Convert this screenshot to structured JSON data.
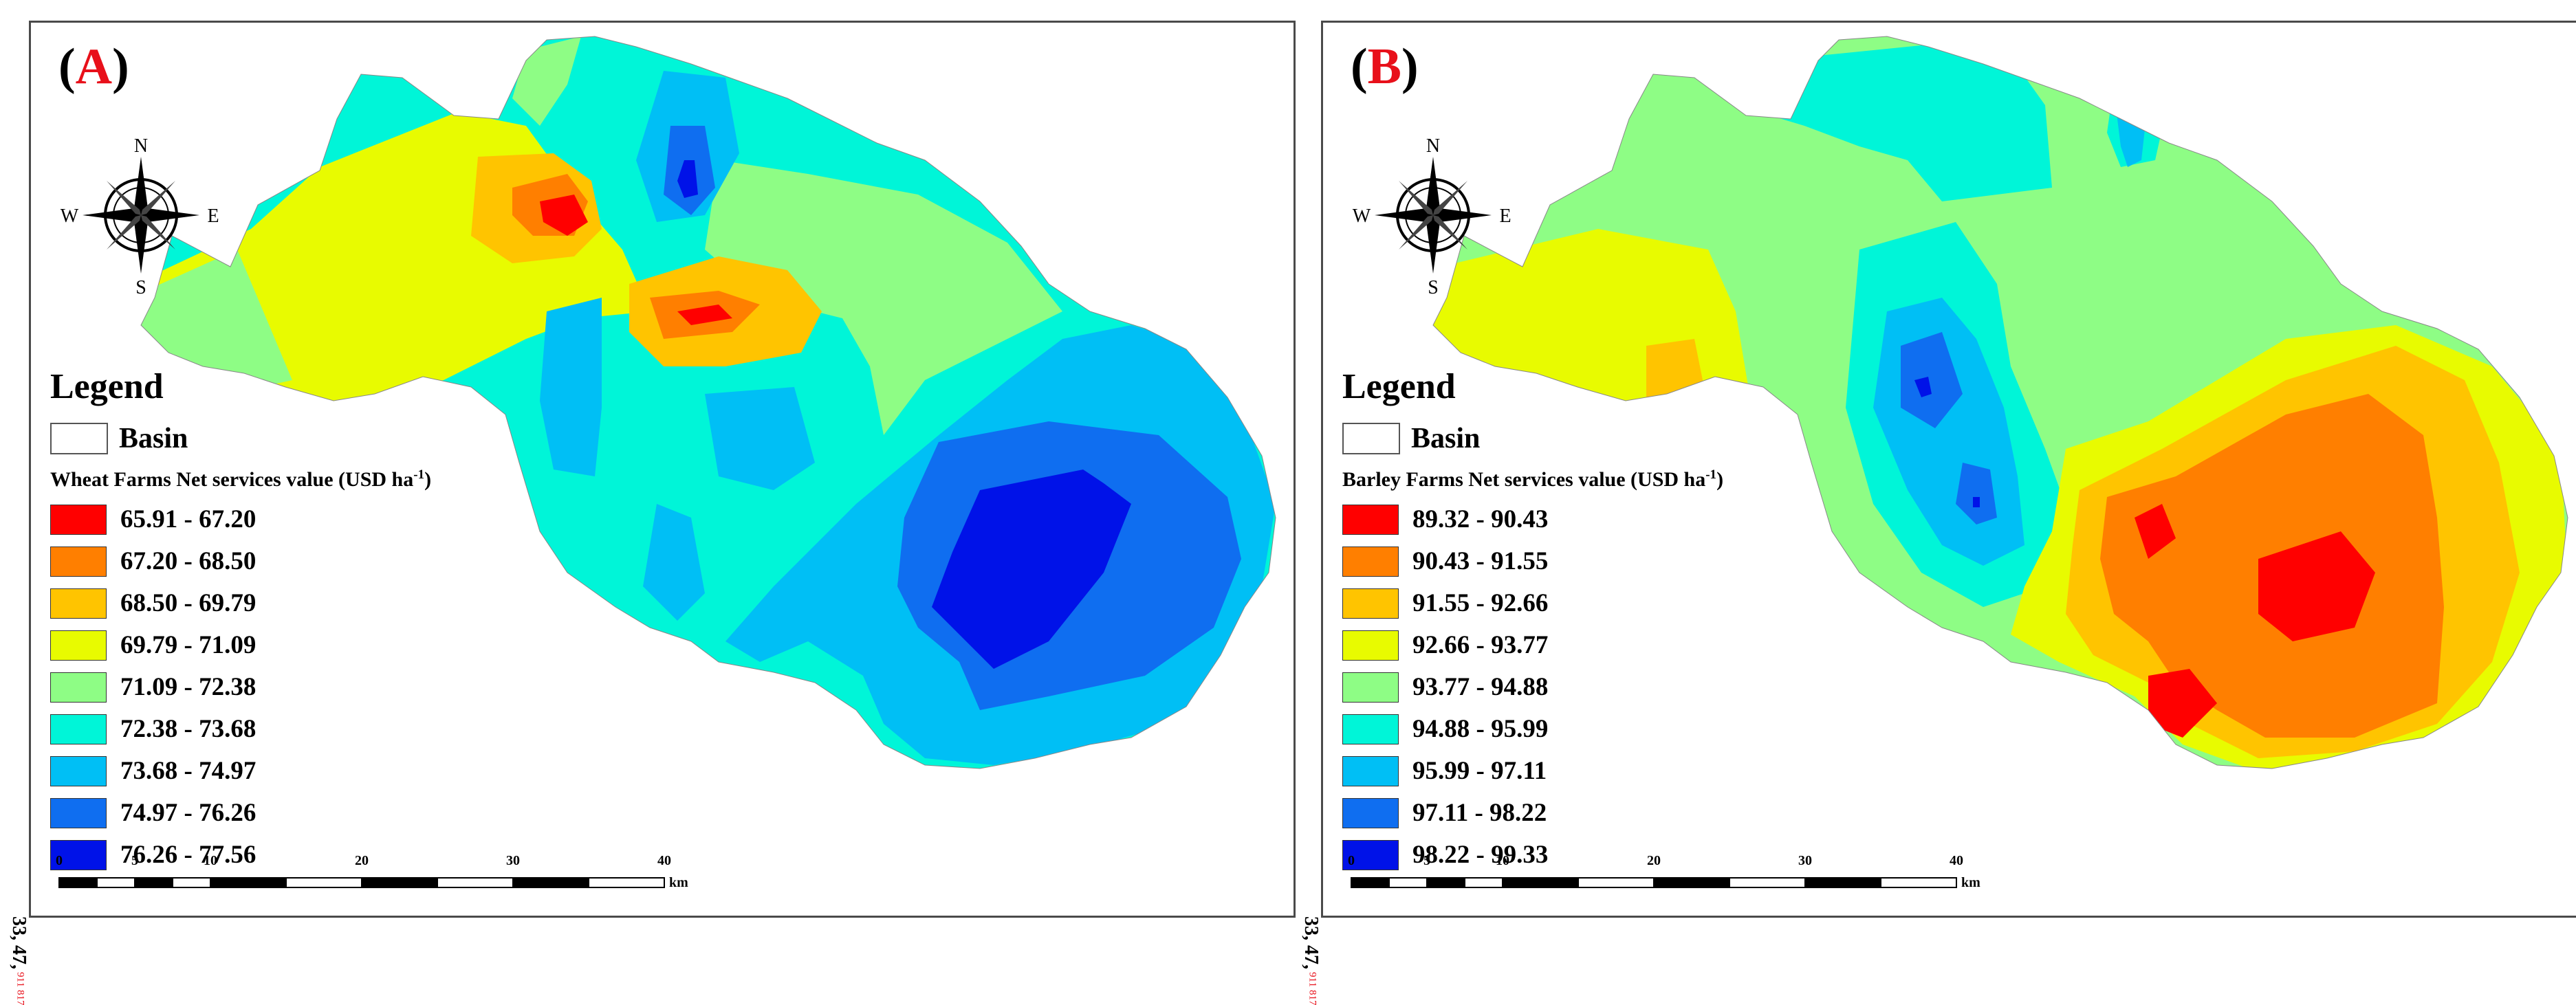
{
  "panels": {
    "a": {
      "label_open": "(",
      "label_letter": "A",
      "label_close": ")",
      "compass": {
        "n": "N",
        "s": "S",
        "e": "E",
        "w": "W"
      },
      "legend_title": "Legend",
      "basin_label": "Basin",
      "subtitle": "Wheat Farms Net services value (USD ha",
      "subtitle_sup": "-1",
      "subtitle_end": ")",
      "classes": [
        {
          "label": "65.91 - 67.20",
          "color": "#ff0000"
        },
        {
          "label": "67.20 - 68.50",
          "color": "#ff7f00"
        },
        {
          "label": "68.50 - 69.79",
          "color": "#ffc400"
        },
        {
          "label": "69.79 - 71.09",
          "color": "#e8fb00"
        },
        {
          "label": "71.09 - 72.38",
          "color": "#8efd85"
        },
        {
          "label": "72.38 - 73.68",
          "color": "#00f5d8"
        },
        {
          "label": "73.68 - 74.97",
          "color": "#00bff5"
        },
        {
          "label": "74.97 - 76.26",
          "color": "#0f6ef0"
        },
        {
          "label": "76.26 - 77.56",
          "color": "#0012e8"
        }
      ],
      "scale": {
        "ticks": [
          "0",
          "5",
          "10",
          "20",
          "30",
          "40"
        ],
        "unit": "km"
      },
      "coord_main": "33, 47,",
      "coord_sup_lat": "911",
      "coord_sup_lon": "817"
    },
    "b": {
      "label_open": "(",
      "label_letter": "B",
      "label_close": ")",
      "compass": {
        "n": "N",
        "s": "S",
        "e": "E",
        "w": "W"
      },
      "legend_title": "Legend",
      "basin_label": "Basin",
      "subtitle": "Barley Farms Net services value (USD ha",
      "subtitle_sup": "-1",
      "subtitle_end": ")",
      "classes": [
        {
          "label": "89.32 - 90.43",
          "color": "#ff0000"
        },
        {
          "label": "90.43 - 91.55",
          "color": "#ff7f00"
        },
        {
          "label": "91.55 - 92.66",
          "color": "#ffc400"
        },
        {
          "label": "92.66 - 93.77",
          "color": "#e8fb00"
        },
        {
          "label": "93.77 - 94.88",
          "color": "#8efd85"
        },
        {
          "label": "94.88 - 95.99",
          "color": "#00f5d8"
        },
        {
          "label": "95.99 - 97.11",
          "color": "#00bff5"
        },
        {
          "label": "97.11 - 98.22",
          "color": "#0f6ef0"
        },
        {
          "label": "98.22 - 99.33",
          "color": "#0012e8"
        }
      ],
      "scale": {
        "ticks": [
          "0",
          "5",
          "10",
          "20",
          "30",
          "40"
        ],
        "unit": "km"
      },
      "coord_main": "33, 47,",
      "coord_sup_lat": "911",
      "coord_sup_lon": "817"
    }
  }
}
